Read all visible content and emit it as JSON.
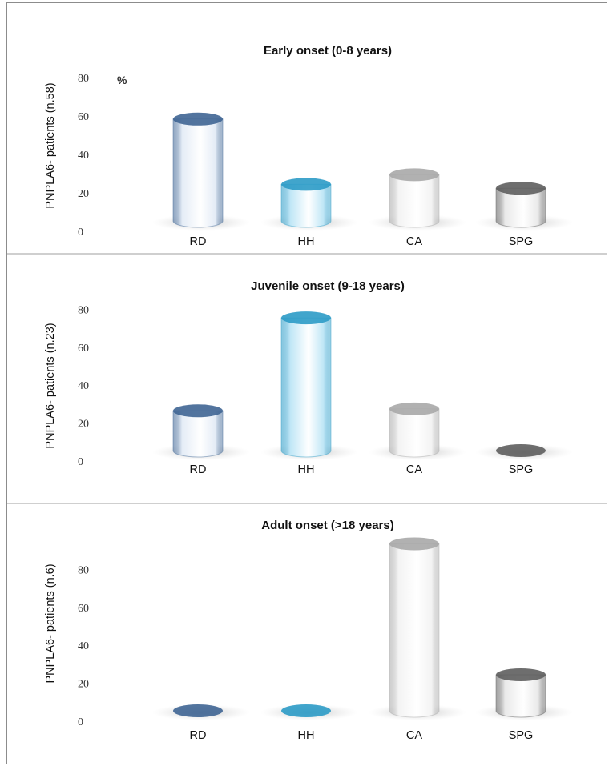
{
  "chart_data": [
    {
      "type": "bar",
      "title": "Early onset (0-8 years)",
      "ylabel": "PNPLA6- patients (n.58)",
      "categories": [
        "RD",
        "HH",
        "CA",
        "SPG"
      ],
      "values": [
        53,
        19,
        24,
        17
      ],
      "ylim": [
        0,
        80
      ],
      "yticks": [
        "80",
        "60",
        "40",
        "20",
        "0"
      ],
      "unit_label": "%"
    },
    {
      "type": "bar",
      "title": "Juvenile onset (9-18 years)",
      "ylabel": "PNPLA6- patients (n.23)",
      "categories": [
        "RD",
        "HH",
        "CA",
        "SPG"
      ],
      "values": [
        21,
        70,
        22,
        0
      ],
      "ylim": [
        0,
        80
      ],
      "yticks": [
        "80",
        "60",
        "40",
        "20",
        "0"
      ]
    },
    {
      "type": "bar",
      "title": "Adult onset (>18 years)",
      "ylabel": "PNPLA6- patients (n.6)",
      "categories": [
        "RD",
        "HH",
        "CA",
        "SPG"
      ],
      "values": [
        0,
        0,
        88,
        19
      ],
      "ylim": [
        0,
        80
      ],
      "yticks": [
        "80",
        "60",
        "40",
        "20",
        "0"
      ]
    }
  ],
  "colors": {
    "RD": "#3f6594",
    "HH": "#2c9bc6",
    "CA": "#a9a9a9",
    "SPG": "#5e5e5e",
    "RD_body": "#e4ecf6",
    "HH_body": "#bfe6f6",
    "CA_body": "#f3f3f3",
    "SPG_body": "#e9e9e9",
    "divider": "#cfcfcf",
    "border": "#8c8c8c"
  }
}
